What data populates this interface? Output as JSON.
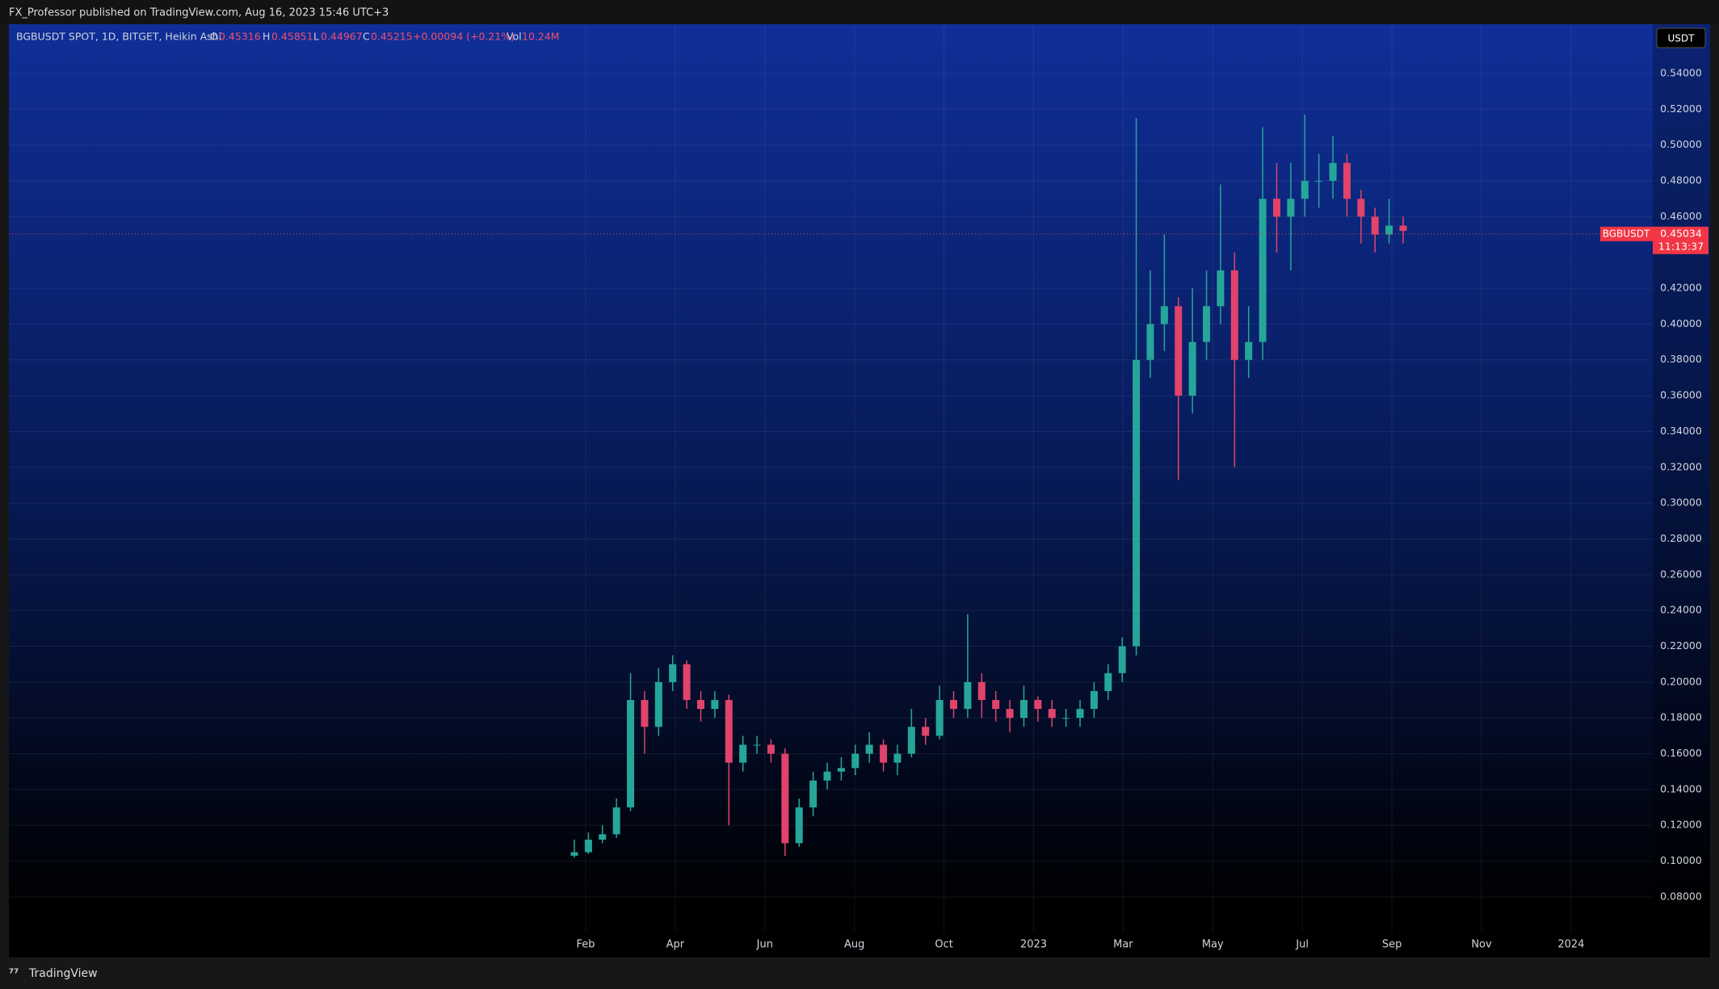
{
  "header": {
    "publisher": "FX_Professor published on TradingView.com, Aug 16, 2023 15:46 UTC+3",
    "symbol": "BGBUSDT SPOT, 1D, BITGET, Heikin Ashi",
    "o_label": "O",
    "o": "0.45316",
    "h_label": "H",
    "h": "0.45851",
    "l_label": "L",
    "l": "0.44967",
    "c_label": "C",
    "c": "0.45215",
    "change": "+0.00094 (+0.21%)",
    "vol_label": "Vol",
    "vol": "10.24M",
    "currency": "USDT"
  },
  "footer": {
    "brand": "TradingView"
  },
  "chart_data": {
    "type": "candlestick",
    "up_color": "#26a69a",
    "down_color": "#e0436b",
    "grid": true,
    "x_labels": [
      "Feb",
      "Apr",
      "Jun",
      "Aug",
      "Oct",
      "2023",
      "Mar",
      "May",
      "Jul",
      "Sep",
      "Nov",
      "2024"
    ],
    "open": [
      0.103,
      0.105,
      0.112,
      0.115,
      0.13,
      0.19,
      0.175,
      0.2,
      0.21,
      0.19,
      0.185,
      0.19,
      0.155,
      0.165,
      0.165,
      0.16,
      0.11,
      0.13,
      0.145,
      0.15,
      0.152,
      0.16,
      0.165,
      0.155,
      0.16,
      0.175,
      0.17,
      0.19,
      0.185,
      0.2,
      0.19,
      0.185,
      0.18,
      0.19,
      0.185,
      0.18,
      0.18,
      0.185,
      0.195,
      0.205,
      0.22,
      0.38,
      0.4,
      0.41,
      0.36,
      0.39,
      0.41,
      0.43,
      0.38,
      0.39,
      0.47,
      0.46,
      0.47,
      0.48,
      0.48,
      0.49,
      0.47,
      0.46,
      0.45,
      0.455
    ],
    "high": [
      0.112,
      0.116,
      0.12,
      0.135,
      0.205,
      0.195,
      0.208,
      0.215,
      0.212,
      0.195,
      0.195,
      0.193,
      0.17,
      0.17,
      0.168,
      0.163,
      0.135,
      0.15,
      0.155,
      0.158,
      0.165,
      0.172,
      0.168,
      0.165,
      0.185,
      0.18,
      0.198,
      0.195,
      0.238,
      0.205,
      0.195,
      0.19,
      0.198,
      0.192,
      0.19,
      0.185,
      0.19,
      0.2,
      0.21,
      0.225,
      0.515,
      0.43,
      0.45,
      0.415,
      0.42,
      0.43,
      0.478,
      0.44,
      0.41,
      0.51,
      0.49,
      0.49,
      0.517,
      0.495,
      0.505,
      0.495,
      0.475,
      0.465,
      0.47,
      0.46
    ],
    "low": [
      0.102,
      0.104,
      0.11,
      0.113,
      0.128,
      0.16,
      0.17,
      0.195,
      0.185,
      0.178,
      0.18,
      0.12,
      0.15,
      0.16,
      0.155,
      0.103,
      0.108,
      0.125,
      0.14,
      0.145,
      0.148,
      0.155,
      0.15,
      0.148,
      0.158,
      0.165,
      0.168,
      0.18,
      0.18,
      0.18,
      0.178,
      0.172,
      0.175,
      0.178,
      0.175,
      0.175,
      0.175,
      0.18,
      0.19,
      0.2,
      0.215,
      0.37,
      0.385,
      0.313,
      0.35,
      0.38,
      0.4,
      0.32,
      0.37,
      0.38,
      0.44,
      0.43,
      0.46,
      0.465,
      0.47,
      0.46,
      0.445,
      0.44,
      0.445,
      0.445
    ],
    "close": [
      0.105,
      0.112,
      0.115,
      0.13,
      0.19,
      0.175,
      0.2,
      0.21,
      0.19,
      0.185,
      0.19,
      0.155,
      0.165,
      0.165,
      0.16,
      0.11,
      0.13,
      0.145,
      0.15,
      0.152,
      0.16,
      0.165,
      0.155,
      0.16,
      0.175,
      0.17,
      0.19,
      0.185,
      0.2,
      0.19,
      0.185,
      0.18,
      0.19,
      0.185,
      0.18,
      0.18,
      0.185,
      0.195,
      0.205,
      0.22,
      0.38,
      0.4,
      0.41,
      0.36,
      0.39,
      0.41,
      0.43,
      0.38,
      0.39,
      0.47,
      0.46,
      0.47,
      0.48,
      0.48,
      0.49,
      0.47,
      0.46,
      0.45,
      0.455,
      0.452
    ],
    "ylim": [
      0.0466,
      0.5675
    ],
    "yticks": [
      {
        "value": 0.08,
        "label": "0.08000"
      },
      {
        "value": 0.1,
        "label": "0.10000"
      },
      {
        "value": 0.12,
        "label": "0.12000"
      },
      {
        "value": 0.14,
        "label": "0.14000"
      },
      {
        "value": 0.16,
        "label": "0.16000"
      },
      {
        "value": 0.18,
        "label": "0.18000"
      },
      {
        "value": 0.2,
        "label": "0.20000"
      },
      {
        "value": 0.22,
        "label": "0.22000"
      },
      {
        "value": 0.24,
        "label": "0.24000"
      },
      {
        "value": 0.26,
        "label": "0.26000"
      },
      {
        "value": 0.28,
        "label": "0.28000"
      },
      {
        "value": 0.3,
        "label": "0.30000"
      },
      {
        "value": 0.32,
        "label": "0.32000"
      },
      {
        "value": 0.34,
        "label": "0.34000"
      },
      {
        "value": 0.36,
        "label": "0.36000"
      },
      {
        "value": 0.38,
        "label": "0.38000"
      },
      {
        "value": 0.4,
        "label": "0.40000"
      },
      {
        "value": 0.42,
        "label": "0.42000"
      },
      {
        "value": 0.46,
        "label": "0.46000"
      },
      {
        "value": 0.48,
        "label": "0.48000"
      },
      {
        "value": 0.5,
        "label": "0.50000"
      },
      {
        "value": 0.52,
        "label": "0.52000"
      },
      {
        "value": 0.54,
        "label": "0.54000"
      }
    ],
    "last_price": 0.45034,
    "price_tag_name": "BGBUSDT",
    "countdown": "11:13:37"
  }
}
